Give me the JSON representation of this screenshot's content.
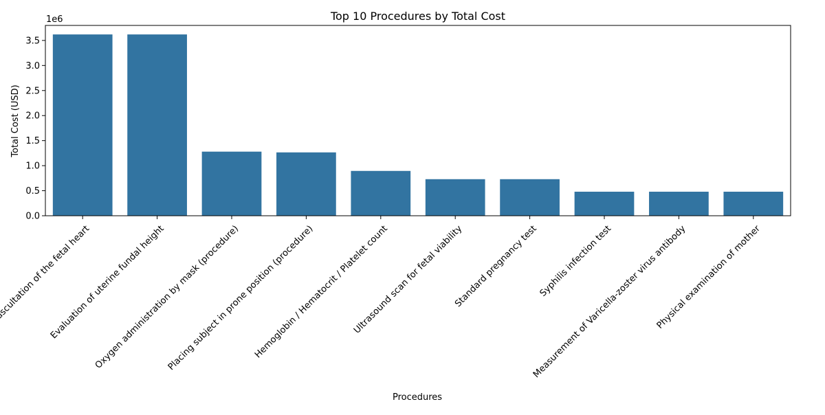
{
  "chart_data": {
    "type": "bar",
    "title": "Top 10 Procedures by Total Cost",
    "xlabel": "Procedures",
    "ylabel": "Total Cost (USD)",
    "y_offset_text": "1e6",
    "ylim": [
      0,
      3800000
    ],
    "yticks": [
      0,
      500000,
      1000000,
      1500000,
      2000000,
      2500000,
      3000000,
      3500000
    ],
    "ytick_labels": [
      "0.0",
      "0.5",
      "1.0",
      "1.5",
      "2.0",
      "2.5",
      "3.0",
      "3.5"
    ],
    "categories": [
      "Auscultation of the fetal heart",
      "Evaluation of uterine fundal height",
      "Oxygen administration by mask (procedure)",
      "Placing subject in prone position (procedure)",
      "Hemoglobin / Hematocrit / Platelet count",
      "Ultrasound scan for fetal viability",
      "Standard pregnancy test",
      "Syphilis infection test",
      "Measurement of Varicella-zoster virus antibody",
      "Physical examination of mother"
    ],
    "values": [
      3620000,
      3620000,
      1280000,
      1265000,
      895000,
      730000,
      730000,
      480000,
      480000,
      480000
    ],
    "bar_color": "#3274a1",
    "grid": false,
    "legend": "none"
  }
}
